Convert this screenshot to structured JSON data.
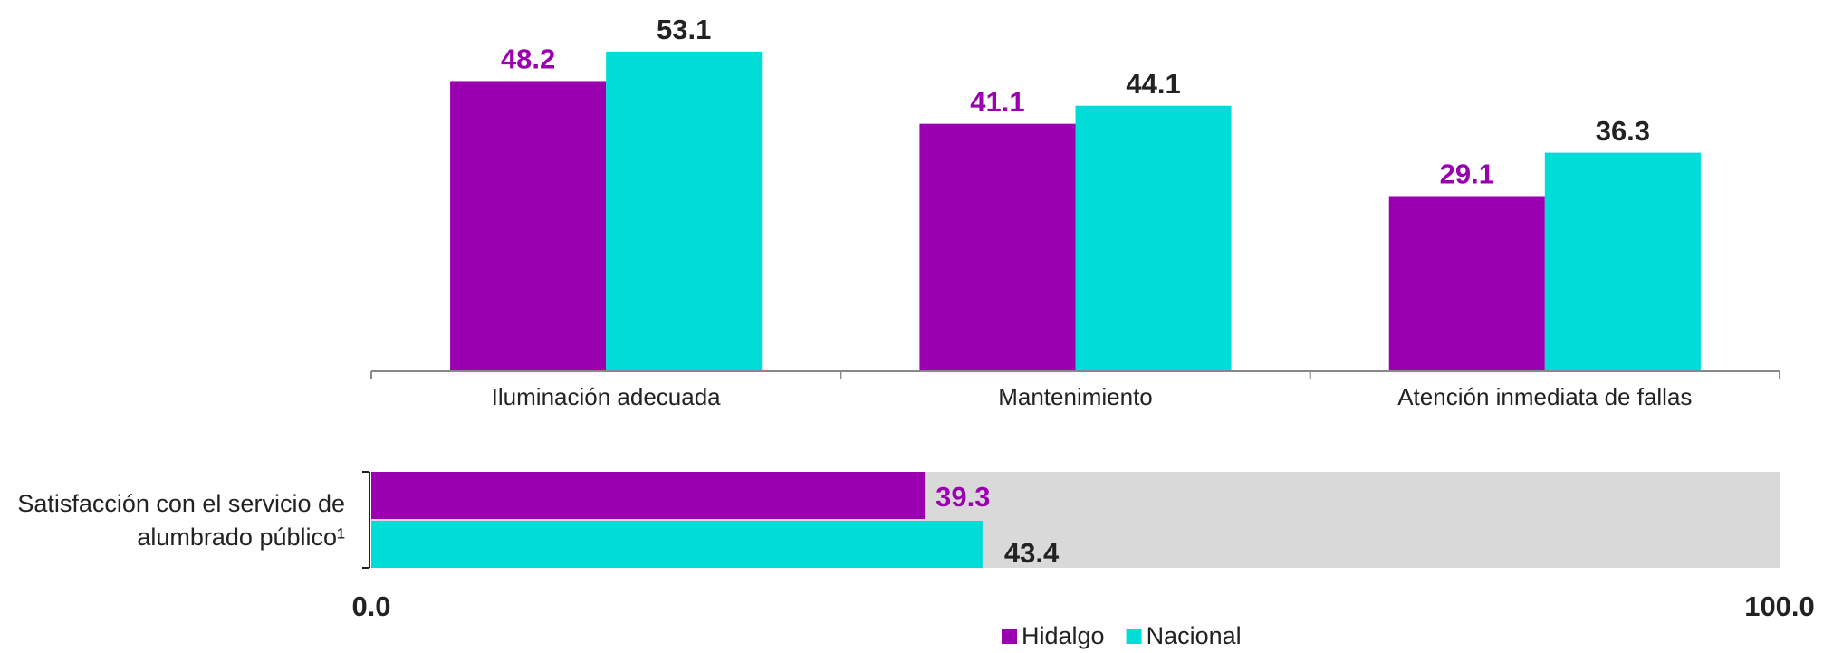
{
  "chart_data": [
    {
      "type": "bar",
      "categories": [
        "Iluminación adecuada",
        "Mantenimiento",
        "Atención inmediata de fallas"
      ],
      "series": [
        {
          "name": "Hidalgo",
          "color": "#9b00b0",
          "label_color": "#9b00b0",
          "values": [
            48.2,
            41.1,
            29.1
          ]
        },
        {
          "name": "Nacional",
          "color": "#00dcd8",
          "label_color": "#222222",
          "values": [
            53.1,
            44.1,
            36.3
          ]
        }
      ],
      "ylim": [
        0,
        60
      ],
      "legend": "bottom"
    },
    {
      "type": "hbar",
      "categories": [
        "Satisfacción con el servicio de alumbrado público¹"
      ],
      "series": [
        {
          "color": "#9b00b0",
          "label_color": "#9b00b0",
          "values": [
            39.3
          ]
        },
        {
          "color": "#00dcd8",
          "label_color": "#222222",
          "values": [
            43.4
          ]
        }
      ],
      "background_color": "#d9d9d9",
      "xlim": [
        0,
        100
      ],
      "xticks": [
        {
          "value": 0,
          "label": "0.0"
        },
        {
          "value": 100,
          "label": "100.0"
        }
      ]
    }
  ]
}
